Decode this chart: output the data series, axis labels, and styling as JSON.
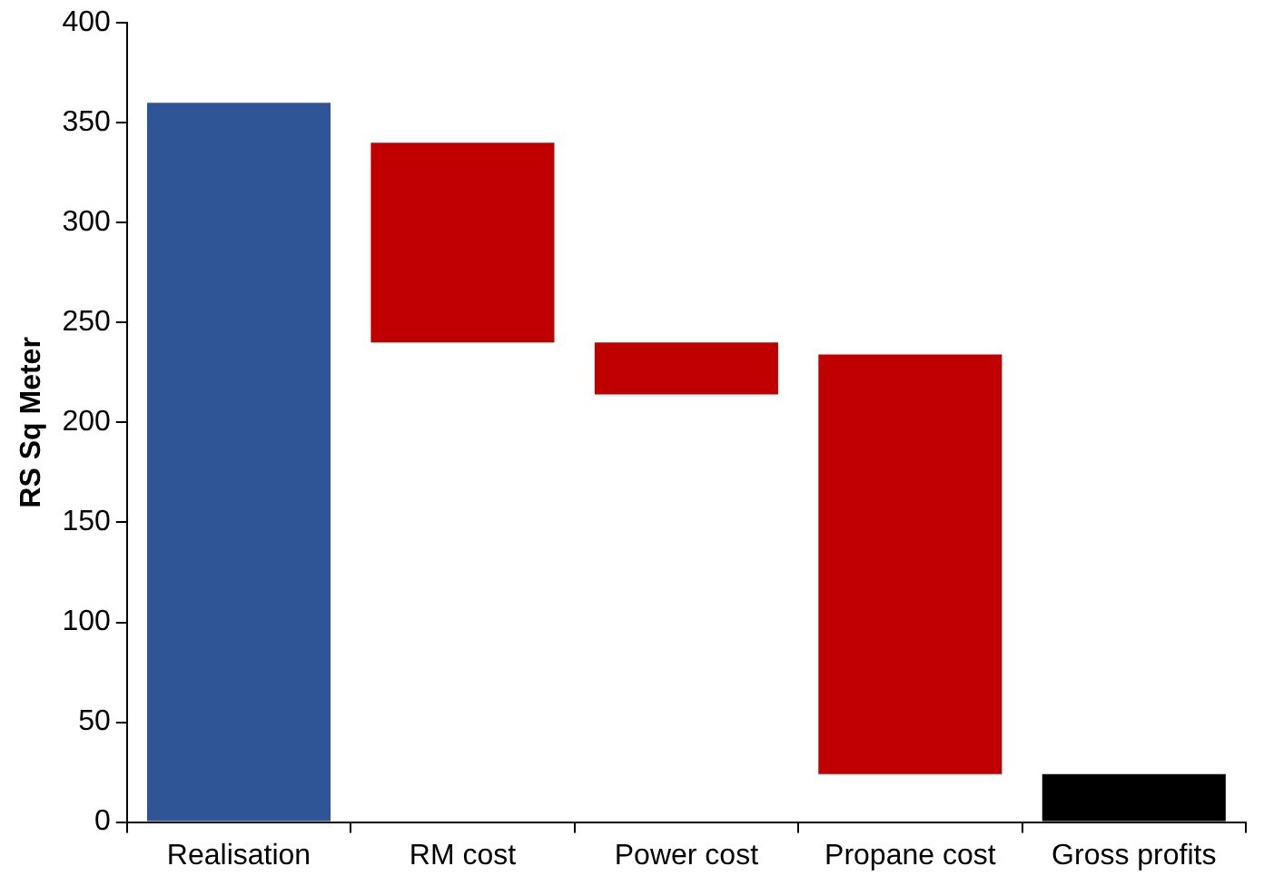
{
  "chart_data": {
    "type": "bar",
    "ylabel": "RS Sq Meter",
    "categories": [
      "Realisation",
      "RM cost",
      "Power cost",
      "Propane cost",
      "Gross profits"
    ],
    "values": [
      360,
      100,
      26,
      210,
      24
    ],
    "base": [
      0,
      240,
      214,
      24,
      0
    ],
    "colors": [
      "#2f5597",
      "#c00000",
      "#c00000",
      "#c00000",
      "#000000"
    ],
    "ylim": [
      0,
      400
    ],
    "yticks": [
      0,
      50,
      100,
      150,
      200,
      250,
      300,
      350,
      400
    ],
    "grid": false,
    "legend": false
  }
}
